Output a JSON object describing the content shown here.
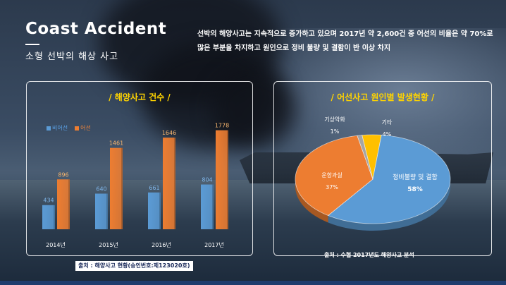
{
  "header": {
    "title": "Coast Accident",
    "subtitle": "소형 선박의 해상 사고",
    "description": "선박의 해양사고는 지속적으로 증가하고 있으며 2017년 약 2,600건 중 어선의 비율은 약 70%로 많은 부분을 차지하고 원인으로 정비 불량 및 결함이 반 이상 차지"
  },
  "left_panel": {
    "title": "/  해양사고 건수  /",
    "source": "출처 : 해양사고 현황(승인번호:제123020호)"
  },
  "right_panel": {
    "title": "/  어선사고 원인별 발생현황  /",
    "source": "출처 : 수협 2017년도 해양사고 분석"
  },
  "colors": {
    "blue": "#5b9bd5",
    "orange": "#ed7d31",
    "yellow": "#ffc000",
    "gray": "#a5a5a5",
    "title_yellow": "#ffd400"
  },
  "chart_data": [
    {
      "type": "bar",
      "categories": [
        "2014년",
        "2015년",
        "2016년",
        "2017년"
      ],
      "series": [
        {
          "name": "비어선",
          "values": [
            434,
            640,
            661,
            804
          ]
        },
        {
          "name": "어선",
          "values": [
            896,
            1461,
            1646,
            1778
          ]
        }
      ],
      "ylim": [
        0,
        1900
      ],
      "legend": "top-left",
      "grid": false
    },
    {
      "type": "pie",
      "labels": [
        "정비불량 및 결함",
        "운항과실",
        "기상악화",
        "기타"
      ],
      "values": [
        58,
        37,
        1,
        4
      ],
      "value_labels": [
        "58%",
        "37%",
        "1%",
        "4%"
      ],
      "colors": [
        "#5b9bd5",
        "#ed7d31",
        "#a5a5a5",
        "#ffc000"
      ]
    }
  ]
}
